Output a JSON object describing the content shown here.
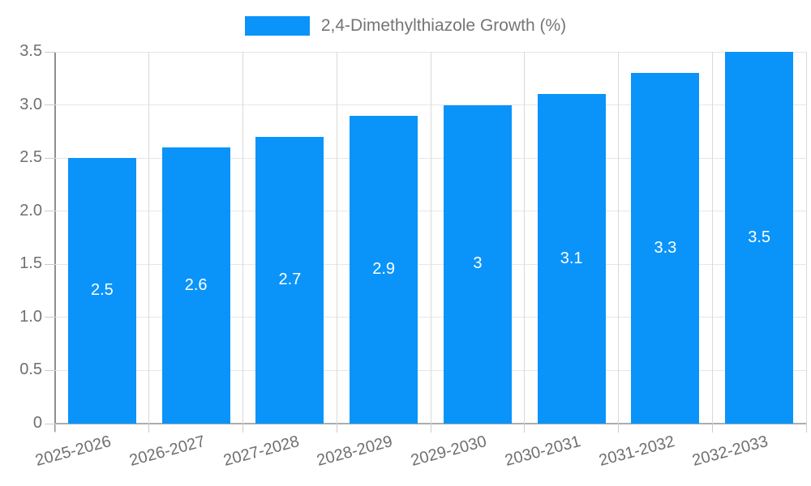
{
  "chart_data": {
    "type": "bar",
    "legend_label": "2,4-Dimethylthiazole Growth (%)",
    "categories": [
      "2025-2026",
      "2026-2027",
      "2027-2028",
      "2028-2029",
      "2029-2030",
      "2030-2031",
      "2031-2032",
      "2032-2033"
    ],
    "values": [
      2.5,
      2.6,
      2.7,
      2.9,
      3,
      3.1,
      3.3,
      3.5
    ],
    "bar_labels": [
      "2.5",
      "2.6",
      "2.7",
      "2.9",
      "3",
      "3.1",
      "3.3",
      "3.5"
    ],
    "xlabel": "",
    "ylabel": "",
    "ylim": [
      0,
      3.5
    ],
    "y_tick_values": [
      0,
      0.5,
      1,
      1.5,
      2,
      2.5,
      3,
      3.5
    ],
    "y_tick_labels": [
      "0",
      "0.5",
      "1.0",
      "1.5",
      "2.0",
      "2.5",
      "3.0",
      "3.5"
    ],
    "grid": "on",
    "legend_position": "top-center",
    "colors": {
      "bar": "#0a94fa",
      "value_label": "#ffffff",
      "axis_text": "#6f6f6f",
      "legend_text": "#757575",
      "gridline": "#e6e6e6",
      "axis_line": "#8f8f8f"
    }
  }
}
